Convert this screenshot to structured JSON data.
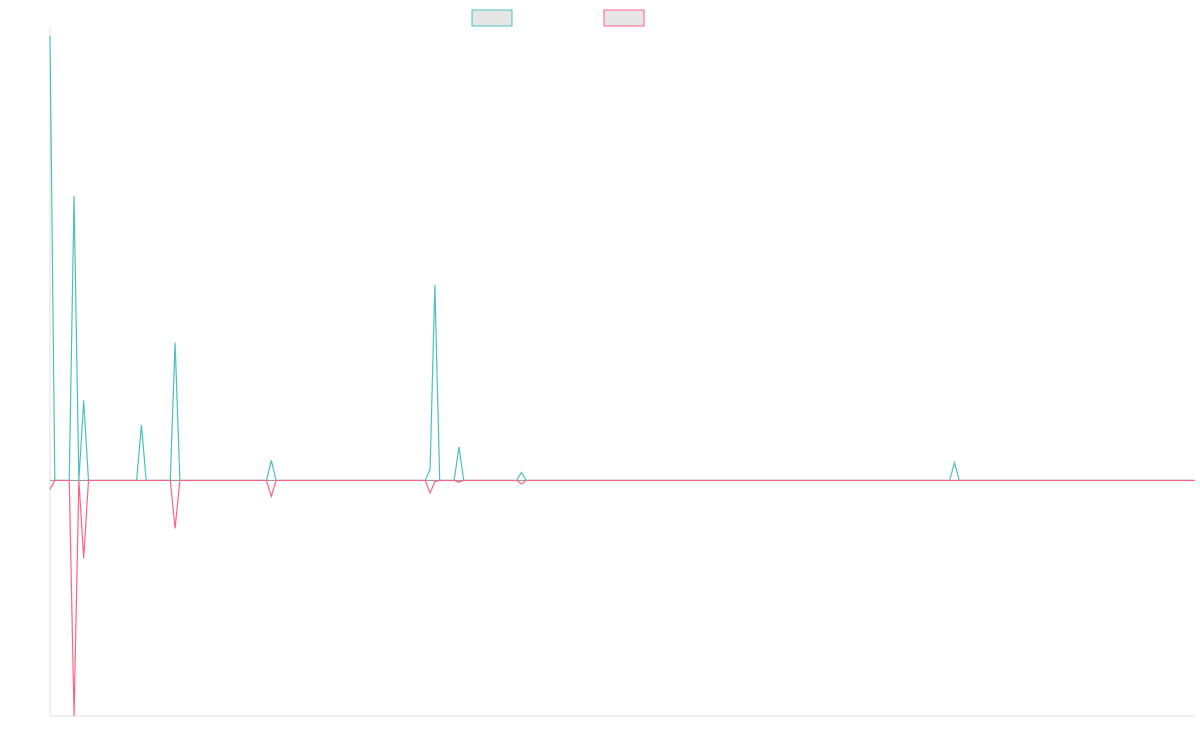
{
  "chart_data": {
    "type": "line",
    "title": "",
    "xlabel": "",
    "ylabel": "",
    "grid": false,
    "legend_position": "top-center",
    "xlim": [
      0,
      238
    ],
    "ylim": [
      -0.53,
      1.0
    ],
    "colors": {
      "series_1": "#4bc0c0",
      "series_2": "#ff6384",
      "legend_fill": "#e6e6e6",
      "axis": "#e0e0e0",
      "baseline": "#9a9a9a"
    },
    "series": [
      {
        "values": [
          [
            0,
            1.0
          ],
          [
            1,
            0
          ],
          [
            4,
            0
          ],
          [
            5,
            0.64
          ],
          [
            6,
            0
          ],
          [
            7,
            0.18
          ],
          [
            8,
            0
          ],
          [
            18,
            0
          ],
          [
            19,
            0.125
          ],
          [
            20,
            0
          ],
          [
            25,
            0
          ],
          [
            26,
            0.31
          ],
          [
            27,
            0
          ],
          [
            45,
            0
          ],
          [
            46,
            0.045
          ],
          [
            47,
            0
          ],
          [
            78,
            0
          ],
          [
            79,
            0.025
          ],
          [
            80,
            0.44
          ],
          [
            81,
            0
          ],
          [
            84,
            0
          ],
          [
            85,
            0.075
          ],
          [
            86,
            0
          ],
          [
            97,
            0
          ],
          [
            98,
            0.018
          ],
          [
            99,
            0
          ],
          [
            187,
            0
          ],
          [
            188,
            0.04
          ],
          [
            189,
            0
          ],
          [
            238,
            0
          ]
        ]
      },
      {
        "values": [
          [
            0,
            -0.02
          ],
          [
            1,
            0
          ],
          [
            4,
            0
          ],
          [
            5,
            -0.53
          ],
          [
            6,
            0
          ],
          [
            7,
            -0.175
          ],
          [
            8,
            0
          ],
          [
            25,
            0
          ],
          [
            26,
            -0.108
          ],
          [
            27,
            0
          ],
          [
            45,
            0
          ],
          [
            46,
            -0.036
          ],
          [
            47,
            0
          ],
          [
            78,
            0
          ],
          [
            79,
            -0.028
          ],
          [
            80,
            -0.003
          ],
          [
            81,
            0
          ],
          [
            84,
            0
          ],
          [
            85,
            -0.004
          ],
          [
            86,
            0
          ],
          [
            97,
            0
          ],
          [
            98,
            -0.008
          ],
          [
            99,
            0
          ],
          [
            238,
            0
          ]
        ]
      }
    ]
  }
}
